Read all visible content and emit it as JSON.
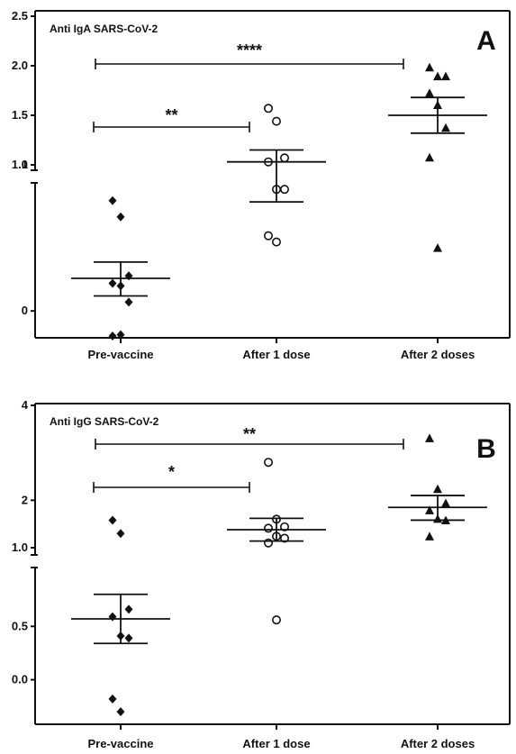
{
  "chart_data": [
    {
      "type": "scatter",
      "panel_label": "A",
      "title": "Anti IgA SARS-CoV-2",
      "categories": [
        "Pre-vaccine",
        "After 1 dose",
        "After 2 doses"
      ],
      "broken_y_axis": true,
      "ylim_lower": [
        -0.2,
        1.0
      ],
      "ylim_upper": [
        1.0,
        2.5
      ],
      "yticks_lower": [
        "0",
        "1"
      ],
      "yticks_upper": [
        "1.0",
        "1.5",
        "2.0",
        "2.5"
      ],
      "series": [
        {
          "marker": "diamond",
          "values": [
            0.88,
            0.75,
            0.28,
            0.22,
            0.2,
            0.07,
            -0.2,
            -0.19
          ]
        },
        {
          "marker": "circle",
          "values": [
            1.57,
            1.44,
            1.07,
            1.03,
            0.97,
            0.97,
            0.6,
            0.55
          ]
        },
        {
          "marker": "triangle",
          "values": [
            1.98,
            1.89,
            1.89,
            1.72,
            1.6,
            1.37,
            1.07,
            0.5
          ]
        }
      ],
      "means": [
        0.26,
        1.03,
        1.5
      ],
      "sem": [
        [
          0.12,
          0.39
        ],
        [
          0.87,
          1.15
        ],
        [
          1.32,
          1.68
        ]
      ],
      "comparisons": [
        {
          "from": "Pre-vaccine",
          "to": "After 1 dose",
          "label": "**"
        },
        {
          "from": "Pre-vaccine",
          "to": "After 2 doses",
          "label": "****"
        }
      ]
    },
    {
      "type": "scatter",
      "panel_label": "B",
      "title": "Anti IgG SARS-CoV-2",
      "categories": [
        "Pre-vaccine",
        "After 1 dose",
        "After 2 doses"
      ],
      "broken_y_axis": true,
      "ylim_lower": [
        -0.4,
        1.0
      ],
      "ylim_upper": [
        1.0,
        4.0
      ],
      "yticks_lower": [
        "0.0",
        "0.5",
        "1.0"
      ],
      "yticks_upper": [
        "2",
        "4"
      ],
      "series": [
        {
          "marker": "diamond",
          "values": [
            1.58,
            1.3,
            0.66,
            0.59,
            0.41,
            0.39,
            -0.18,
            -0.3
          ]
        },
        {
          "marker": "circle",
          "values": [
            2.8,
            1.6,
            1.44,
            1.41,
            1.24,
            1.2,
            1.1,
            0.56
          ]
        },
        {
          "marker": "triangle",
          "values": [
            3.3,
            2.23,
            1.93,
            1.78,
            1.6,
            1.57,
            1.23
          ]
        }
      ],
      "means": [
        0.57,
        1.38,
        1.85
      ],
      "sem": [
        [
          0.34,
          0.8
        ],
        [
          1.14,
          1.62
        ],
        [
          1.58,
          2.1
        ]
      ],
      "comparisons": [
        {
          "from": "Pre-vaccine",
          "to": "After 1 dose",
          "label": "*"
        },
        {
          "from": "Pre-vaccine",
          "to": "After 2 doses",
          "label": "**"
        }
      ]
    }
  ]
}
